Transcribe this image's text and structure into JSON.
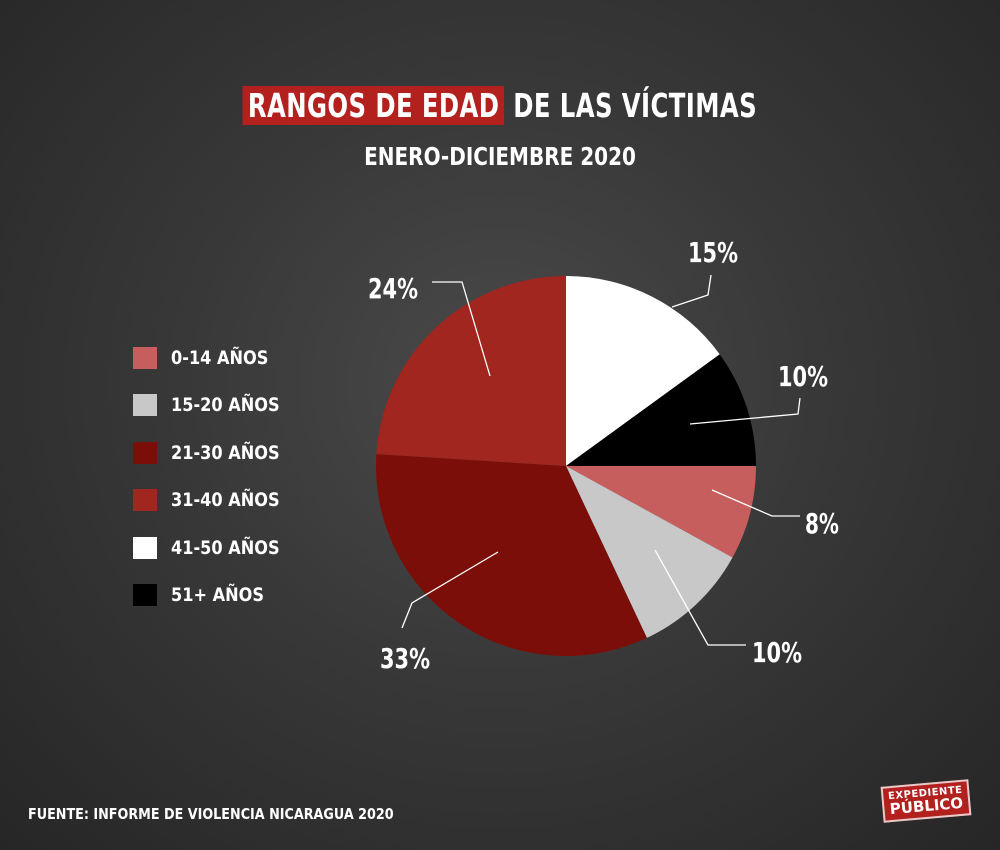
{
  "title": {
    "highlight": "RANGOS DE EDAD",
    "rest": " DE LAS VÍCTIMAS"
  },
  "subtitle": "ENERO-DICIEMBRE 2020",
  "source": "FUENTE: INFORME DE VIOLENCIA NICARAGUA 2020",
  "logo": {
    "line1": "EXPEDIENTE",
    "line2": "PÚBLICO"
  },
  "chart_data": {
    "type": "pie",
    "categories": [
      "0-14 AÑOS",
      "15-20 AÑOS",
      "21-30 AÑOS",
      "31-40 AÑOS",
      "41-50 AÑOS",
      "51+ AÑOS"
    ],
    "values": [
      8,
      10,
      33,
      24,
      15,
      10
    ],
    "labels": [
      "8%",
      "10%",
      "33%",
      "24%",
      "15%",
      "10%"
    ],
    "colors": [
      "#c65e5e",
      "#c8c8c8",
      "#7b0e08",
      "#a0261f",
      "#ffffff",
      "#000000"
    ],
    "legend_position": "left"
  }
}
